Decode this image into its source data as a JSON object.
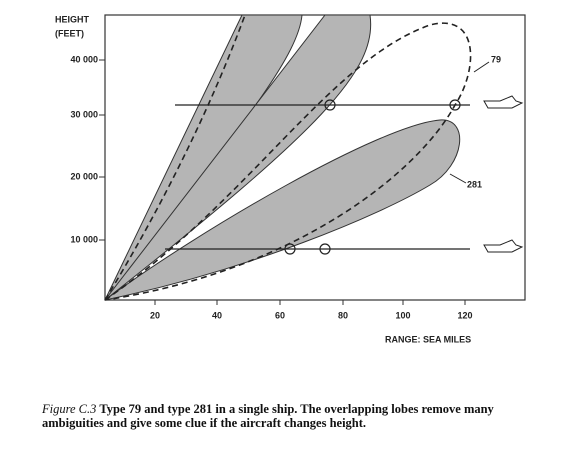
{
  "figure": {
    "y_axis_label": [
      "HEIGHT",
      "(FEET)"
    ],
    "y_ticks": [
      "40 000",
      "30 000",
      "20 000",
      "10 000"
    ],
    "x_ticks": [
      "20",
      "40",
      "60",
      "80",
      "100",
      "120"
    ],
    "x_axis_label": "RANGE: SEA MILES",
    "annotations": [
      "79",
      "281"
    ]
  },
  "caption": {
    "label": "Figure C.3",
    "text": "Type 79 and type 281 in a single ship. The overlapping lobes remove many ambiguities and give some clue if the aircraft changes height."
  }
}
